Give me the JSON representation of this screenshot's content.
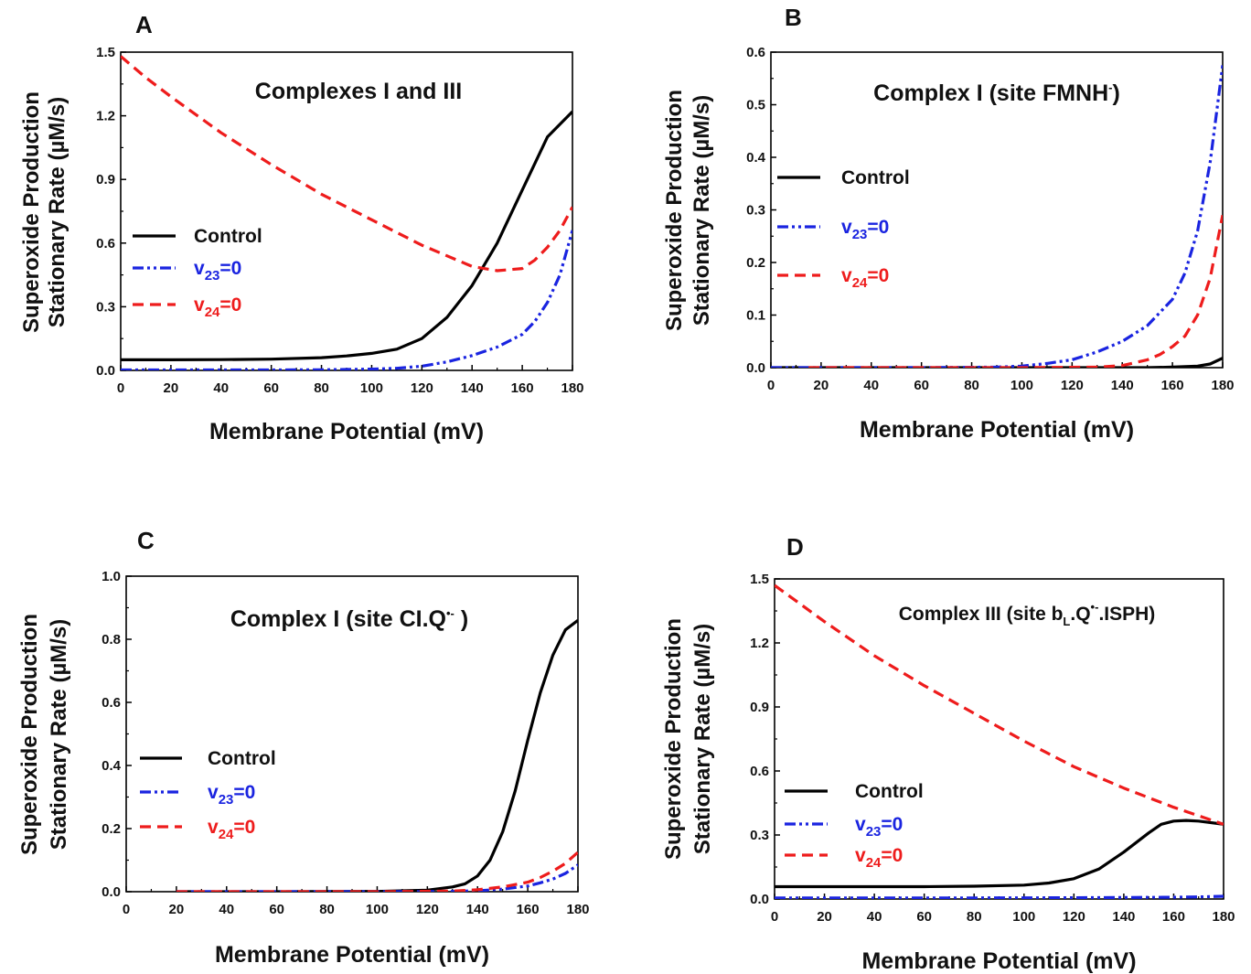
{
  "figure": {
    "colors": {
      "control": "#000000",
      "v23": "#1a24e0",
      "v24": "#ee1c1c"
    },
    "panels": [
      {
        "letter": "A",
        "ylabel_lines": [
          "Superoxide Production",
          "Stationary Rate (µM/s)"
        ],
        "xlabel": "Membrane Potential  (mV)",
        "yticks": [
          "0.0",
          "0.3",
          "0.6",
          "0.9",
          "1.2",
          "1.5"
        ],
        "xticks": [
          "0",
          "20",
          "40",
          "60",
          "80",
          "100",
          "120",
          "140",
          "160",
          "180"
        ],
        "ylim": [
          0,
          1.5
        ],
        "xlim": [
          0,
          180
        ],
        "title": {
          "text": "Complexes I and III"
        },
        "legend": [
          {
            "key": "control",
            "label": "Control"
          },
          {
            "key": "v23",
            "v": "v",
            "sub": "23",
            "rest": "=0"
          },
          {
            "key": "v24",
            "v": "v",
            "sub": "24",
            "rest": "=0"
          }
        ]
      },
      {
        "letter": "B",
        "ylabel_lines": [
          "Superoxide Production",
          "Stationary Rate (µM/s)"
        ],
        "xlabel": "Membrane Potential  (mV)",
        "yticks": [
          "0.0",
          "0.1",
          "0.2",
          "0.3",
          "0.4",
          "0.5",
          "0.6"
        ],
        "xticks": [
          "0",
          "20",
          "40",
          "60",
          "80",
          "100",
          "120",
          "140",
          "160",
          "180"
        ],
        "ylim": [
          0,
          0.6
        ],
        "xlim": [
          0,
          180
        ],
        "title": {
          "main": "Complex I  (site FMNH",
          "sup": "-",
          "tail": ")"
        },
        "legend": [
          {
            "key": "control",
            "label": "Control"
          },
          {
            "key": "v23",
            "v": "v",
            "sub": "23",
            "rest": "=0"
          },
          {
            "key": "v24",
            "v": "v",
            "sub": "24",
            "rest": "=0"
          }
        ]
      },
      {
        "letter": "C",
        "ylabel_lines": [
          "Superoxide Production",
          "Stationary Rate (µM/s)"
        ],
        "xlabel": "Membrane Potential  (mV)",
        "yticks": [
          "0.0",
          "0.2",
          "0.4",
          "0.6",
          "0.8",
          "1.0"
        ],
        "xticks": [
          "0",
          "20",
          "40",
          "60",
          "80",
          "100",
          "120",
          "140",
          "160",
          "180"
        ],
        "ylim": [
          0,
          1.0
        ],
        "xlim": [
          0,
          180
        ],
        "title": {
          "main": "Complex I  (site CI.Q",
          "sup": "•-",
          "tail": " )"
        },
        "legend": [
          {
            "key": "control",
            "label": "Control"
          },
          {
            "key": "v23",
            "v": "v",
            "sub": "23",
            "rest": "=0"
          },
          {
            "key": "v24",
            "v": "v",
            "sub": "24",
            "rest": "=0"
          }
        ]
      },
      {
        "letter": "D",
        "ylabel_lines": [
          "Superoxide Production",
          "Stationary Rate (µM/s)"
        ],
        "xlabel": "Membrane Potential  (mV)",
        "yticks": [
          "0.0",
          "0.3",
          "0.6",
          "0.9",
          "1.2",
          "1.5"
        ],
        "xticks": [
          "0",
          "20",
          "40",
          "60",
          "80",
          "100",
          "120",
          "140",
          "160",
          "180"
        ],
        "ylim": [
          0,
          1.5
        ],
        "xlim": [
          0,
          180
        ],
        "title": {
          "main": "Complex III  (site b",
          "sub": "L",
          "mid": ".Q",
          "sup": "•-",
          "tail": ".ISPH)"
        },
        "legend": [
          {
            "key": "control",
            "label": "Control"
          },
          {
            "key": "v23",
            "v": "v",
            "sub": "23",
            "rest": "=0"
          },
          {
            "key": "v24",
            "v": "v",
            "sub": "24",
            "rest": "=0"
          }
        ]
      }
    ]
  },
  "chart_data": [
    {
      "type": "line",
      "panel": "A",
      "title": "Complexes I and III",
      "xlabel": "Membrane Potential  (mV)",
      "ylabel": "Superoxide Production Stationary Rate (µM/s)",
      "xlim": [
        0,
        180
      ],
      "ylim": [
        0,
        1.5
      ],
      "legend_position": "left",
      "series": [
        {
          "name": "Control",
          "style": "solid",
          "x": [
            0,
            20,
            40,
            60,
            80,
            90,
            100,
            110,
            120,
            130,
            140,
            150,
            160,
            170,
            180
          ],
          "y": [
            0.05,
            0.05,
            0.051,
            0.053,
            0.06,
            0.068,
            0.08,
            0.1,
            0.15,
            0.25,
            0.4,
            0.6,
            0.85,
            1.1,
            1.22
          ]
        },
        {
          "name": "v23=0",
          "style": "dashdot",
          "x": [
            0,
            20,
            40,
            60,
            80,
            100,
            110,
            120,
            130,
            140,
            150,
            160,
            165,
            170,
            175,
            180
          ],
          "y": [
            0.002,
            0.002,
            0.002,
            0.002,
            0.003,
            0.006,
            0.01,
            0.02,
            0.04,
            0.07,
            0.11,
            0.17,
            0.23,
            0.32,
            0.45,
            0.66
          ]
        },
        {
          "name": "v24=0",
          "style": "dashed",
          "x": [
            0,
            10,
            20,
            40,
            60,
            80,
            100,
            120,
            140,
            150,
            160,
            165,
            170,
            175,
            180
          ],
          "y": [
            1.48,
            1.38,
            1.29,
            1.12,
            0.97,
            0.83,
            0.71,
            0.59,
            0.49,
            0.47,
            0.48,
            0.52,
            0.58,
            0.66,
            0.77
          ]
        }
      ]
    },
    {
      "type": "line",
      "panel": "B",
      "title": "Complex I  (site FMNH-)",
      "xlabel": "Membrane Potential  (mV)",
      "ylabel": "Superoxide Production Stationary Rate (µM/s)",
      "xlim": [
        0,
        180
      ],
      "ylim": [
        0,
        0.6
      ],
      "legend_position": "left",
      "series": [
        {
          "name": "Control",
          "style": "solid",
          "x": [
            0,
            40,
            80,
            120,
            150,
            160,
            170,
            175,
            180
          ],
          "y": [
            0,
            0,
            0,
            0,
            0,
            0.001,
            0.003,
            0.007,
            0.018
          ]
        },
        {
          "name": "v23=0",
          "style": "dashdot",
          "x": [
            0,
            60,
            90,
            100,
            110,
            120,
            130,
            140,
            150,
            160,
            165,
            170,
            175,
            180
          ],
          "y": [
            0,
            0,
            0.001,
            0.003,
            0.008,
            0.015,
            0.03,
            0.05,
            0.08,
            0.13,
            0.18,
            0.26,
            0.39,
            0.575
          ]
        },
        {
          "name": "v24=0",
          "style": "dashed",
          "x": [
            15,
            60,
            100,
            130,
            140,
            150,
            155,
            160,
            165,
            170,
            175,
            180
          ],
          "y": [
            0,
            0,
            0,
            0.001,
            0.004,
            0.015,
            0.025,
            0.04,
            0.06,
            0.1,
            0.17,
            0.29
          ]
        }
      ]
    },
    {
      "type": "line",
      "panel": "C",
      "title": "Complex I  (site CI.Q•-)",
      "xlabel": "Membrane Potential  (mV)",
      "ylabel": "Superoxide Production Stationary Rate (µM/s)",
      "xlim": [
        0,
        180
      ],
      "ylim": [
        0,
        1.0
      ],
      "legend_position": "left",
      "series": [
        {
          "name": "Control",
          "style": "solid",
          "x": [
            20,
            60,
            100,
            120,
            130,
            135,
            140,
            145,
            150,
            155,
            160,
            165,
            170,
            175,
            180
          ],
          "y": [
            0,
            0,
            0.001,
            0.005,
            0.015,
            0.025,
            0.05,
            0.1,
            0.19,
            0.32,
            0.48,
            0.63,
            0.75,
            0.83,
            0.86
          ]
        },
        {
          "name": "v23=0",
          "style": "dashdot",
          "x": [
            20,
            60,
            100,
            130,
            140,
            150,
            160,
            165,
            170,
            175,
            180
          ],
          "y": [
            0,
            0,
            0,
            0.001,
            0.003,
            0.008,
            0.018,
            0.028,
            0.04,
            0.058,
            0.085
          ]
        },
        {
          "name": "v24=0",
          "style": "dashed",
          "x": [
            20,
            60,
            100,
            130,
            140,
            150,
            160,
            165,
            170,
            175,
            180
          ],
          "y": [
            0,
            0,
            0,
            0.002,
            0.006,
            0.015,
            0.03,
            0.045,
            0.065,
            0.09,
            0.125
          ]
        }
      ]
    },
    {
      "type": "line",
      "panel": "D",
      "title": "Complex III  (site bL.Q•-.ISPH)",
      "xlabel": "Membrane Potential  (mV)",
      "ylabel": "Superoxide Production Stationary Rate (µM/s)",
      "xlim": [
        0,
        180
      ],
      "ylim": [
        0,
        1.5
      ],
      "legend_position": "bottom-left",
      "series": [
        {
          "name": "Control",
          "style": "solid",
          "x": [
            0,
            20,
            40,
            60,
            80,
            100,
            110,
            120,
            130,
            140,
            150,
            155,
            160,
            165,
            170,
            180
          ],
          "y": [
            0.058,
            0.058,
            0.058,
            0.058,
            0.06,
            0.065,
            0.075,
            0.095,
            0.14,
            0.22,
            0.31,
            0.35,
            0.365,
            0.368,
            0.365,
            0.35
          ]
        },
        {
          "name": "v23=0",
          "style": "dashdot",
          "x": [
            0,
            40,
            80,
            120,
            160,
            170,
            180
          ],
          "y": [
            0.005,
            0.005,
            0.005,
            0.006,
            0.008,
            0.01,
            0.013
          ]
        },
        {
          "name": "v24=0",
          "style": "dashed",
          "x": [
            0,
            20,
            40,
            60,
            80,
            100,
            120,
            140,
            160,
            180
          ],
          "y": [
            1.47,
            1.3,
            1.14,
            1.0,
            0.87,
            0.74,
            0.62,
            0.52,
            0.43,
            0.35
          ]
        }
      ]
    }
  ]
}
